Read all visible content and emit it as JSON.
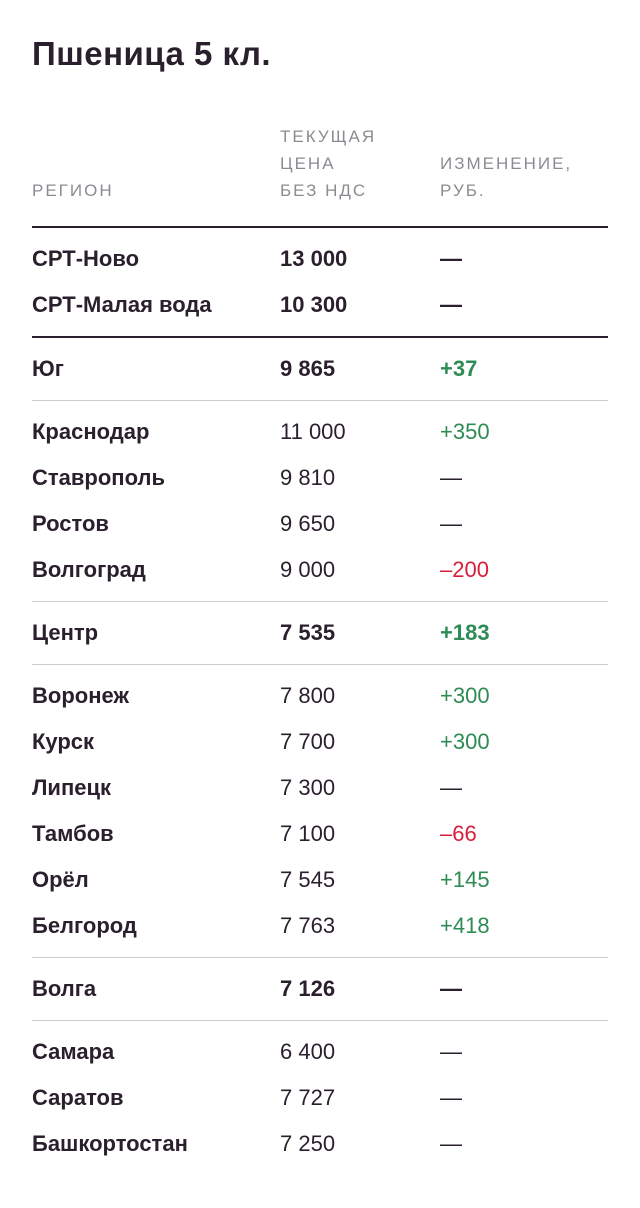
{
  "title": "Пшеница 5 кл.",
  "columns": {
    "region": "РЕГИОН",
    "price": "ТЕКУЩАЯ\nЦЕНА\nБЕЗ НДС",
    "change": "ИЗМЕНЕНИЕ,\nРУБ."
  },
  "colors": {
    "text": "#2a1f2d",
    "muted": "#8f8a92",
    "positive": "#2e8b55",
    "negative": "#d81e3a",
    "divider": "#cfcbd1"
  },
  "groups": [
    {
      "type": "ports",
      "rows": [
        {
          "region": "СРТ-Ново",
          "price": "13 000",
          "change": "—",
          "trend": "none",
          "summary": true
        },
        {
          "region": "СРТ-Малая вода",
          "price": "10 300",
          "change": "—",
          "trend": "none",
          "summary": true
        }
      ]
    },
    {
      "type": "summary",
      "rows": [
        {
          "region": "Юг",
          "price": "9 865",
          "change": "+37",
          "trend": "pos",
          "summary": true
        }
      ]
    },
    {
      "type": "detail",
      "rows": [
        {
          "region": "Краснодар",
          "price": "11 000",
          "change": "+350",
          "trend": "pos"
        },
        {
          "region": "Ставрополь",
          "price": "9 810",
          "change": "—",
          "trend": "none"
        },
        {
          "region": "Ростов",
          "price": "9 650",
          "change": "—",
          "trend": "none"
        },
        {
          "region": "Волгоград",
          "price": "9 000",
          "change": "–200",
          "trend": "neg"
        }
      ]
    },
    {
      "type": "summary",
      "rows": [
        {
          "region": "Центр",
          "price": "7 535",
          "change": "+183",
          "trend": "pos",
          "summary": true
        }
      ]
    },
    {
      "type": "detail",
      "rows": [
        {
          "region": "Воронеж",
          "price": "7 800",
          "change": "+300",
          "trend": "pos"
        },
        {
          "region": "Курск",
          "price": "7 700",
          "change": "+300",
          "trend": "pos"
        },
        {
          "region": "Липецк",
          "price": "7 300",
          "change": "—",
          "trend": "none"
        },
        {
          "region": "Тамбов",
          "price": "7 100",
          "change": "–66",
          "trend": "neg"
        },
        {
          "region": "Орёл",
          "price": "7 545",
          "change": "+145",
          "trend": "pos"
        },
        {
          "region": "Белгород",
          "price": "7 763",
          "change": "+418",
          "trend": "pos"
        }
      ]
    },
    {
      "type": "summary",
      "rows": [
        {
          "region": "Волга",
          "price": "7 126",
          "change": "—",
          "trend": "none",
          "summary": true
        }
      ]
    },
    {
      "type": "detail",
      "rows": [
        {
          "region": "Самара",
          "price": "6 400",
          "change": "—",
          "trend": "none"
        },
        {
          "region": "Саратов",
          "price": "7 727",
          "change": "—",
          "trend": "none"
        },
        {
          "region": "Башкортостан",
          "price": "7 250",
          "change": "—",
          "trend": "none"
        }
      ]
    }
  ]
}
